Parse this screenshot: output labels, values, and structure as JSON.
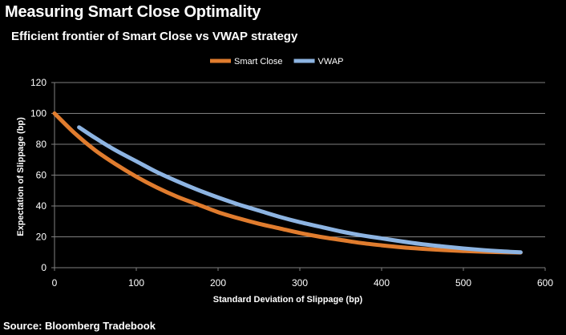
{
  "header": {
    "title": "Measuring Smart Close Optimality",
    "subtitle": "Efficient frontier of Smart Close vs VWAP strategy"
  },
  "footer": {
    "source": "Source: Bloomberg Tradebook"
  },
  "colors": {
    "background": "#000000",
    "gridline": "#7f7f7f",
    "text": "#ffffff"
  },
  "chart_data": {
    "type": "line",
    "title": "Efficient frontier of Smart Close vs VWAP strategy",
    "xlabel": "Standard Deviation of Slippage (bp)",
    "ylabel": "Expectation of Slippage (bp)",
    "xlim": [
      0,
      600
    ],
    "ylim": [
      0,
      120
    ],
    "xticks": [
      0,
      100,
      200,
      300,
      400,
      500,
      600
    ],
    "yticks": [
      0,
      20,
      40,
      60,
      80,
      100,
      120
    ],
    "grid": "horizontal",
    "legend_position": "top-center",
    "series": [
      {
        "name": "Smart Close",
        "color": "#e07c2e",
        "x": [
          0,
          25,
          50,
          75,
          100,
          125,
          150,
          175,
          200,
          225,
          250,
          275,
          300,
          325,
          350,
          375,
          400,
          425,
          450,
          475,
          500,
          525,
          550,
          570
        ],
        "y": [
          100,
          87,
          76,
          67,
          59,
          52,
          46,
          41,
          36,
          32,
          28.5,
          25.5,
          22.5,
          20,
          18,
          16,
          14.5,
          13.2,
          12.2,
          11.4,
          10.8,
          10.3,
          10.0,
          9.8
        ]
      },
      {
        "name": "VWAP",
        "color": "#8db4e2",
        "x": [
          30,
          50,
          75,
          100,
          125,
          150,
          175,
          200,
          225,
          250,
          275,
          300,
          325,
          350,
          375,
          400,
          425,
          450,
          475,
          500,
          525,
          550,
          570
        ],
        "y": [
          91,
          84,
          76,
          69,
          62,
          56,
          50.5,
          45.5,
          41,
          37,
          33,
          29.5,
          26.5,
          23.5,
          21,
          19,
          17,
          15.2,
          13.8,
          12.5,
          11.4,
          10.5,
          10.0
        ]
      }
    ]
  }
}
